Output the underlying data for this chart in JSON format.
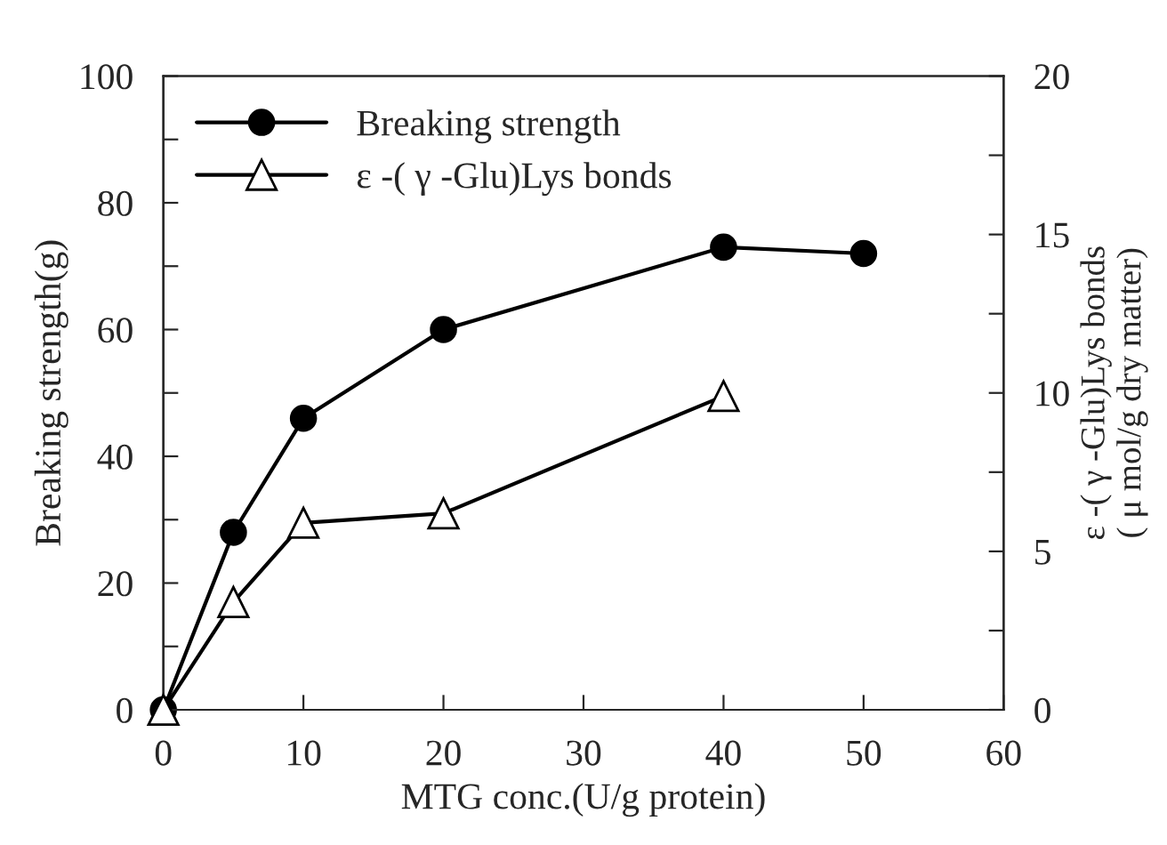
{
  "chart_data": {
    "type": "line",
    "xlabel": "MTG conc.(U/g protein)",
    "ylabel": "Breaking strength(g)",
    "y2label": "ε -( γ -Glu)Lys bonds\n( μ mol/g dry matter)",
    "x": [
      0,
      5,
      10,
      20,
      40,
      50
    ],
    "series": [
      {
        "name": "Breaking strength",
        "color": "#000000",
        "marker": "circle",
        "values": [
          0,
          28,
          46,
          60,
          73,
          72
        ]
      },
      {
        "name": "ε -( γ -Glu)Lys bonds",
        "color": "#000000",
        "marker": "triangle",
        "axis": "y2",
        "x": [
          0,
          5,
          10,
          20,
          40
        ],
        "values": [
          0,
          3.4,
          5.9,
          6.2,
          9.9
        ]
      }
    ],
    "xlim": [
      0,
      60
    ],
    "xticks": [
      0,
      10,
      20,
      30,
      40,
      50,
      60
    ],
    "ylim": [
      0,
      100
    ],
    "yticks": [
      0,
      {
        "value": 10,
        "label": null
      },
      20,
      {
        "value": 30,
        "label": null
      },
      40,
      {
        "value": 50,
        "label": null
      },
      60,
      {
        "value": 70,
        "label": null
      },
      80,
      {
        "value": 90,
        "label": null
      },
      100
    ],
    "y2lim": [
      0,
      20
    ],
    "y2ticks": [
      0,
      {
        "value": 2.5,
        "label": null
      },
      5,
      {
        "value": 7.5,
        "label": null
      },
      10,
      {
        "value": 12.5,
        "label": null
      },
      15,
      {
        "value": 17.5,
        "label": null
      },
      20
    ],
    "legend": "top left",
    "grid": false,
    "line_style": "solid"
  }
}
